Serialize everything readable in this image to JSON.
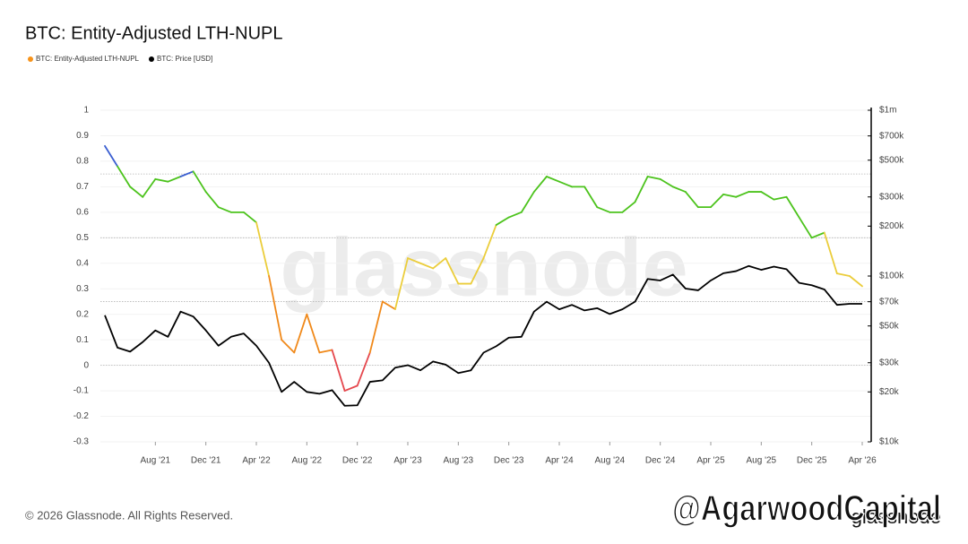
{
  "chart_data": {
    "type": "line",
    "title": "BTC: Entity-Adjusted LTH-NUPL",
    "x": [
      "2021-04",
      "2021-05",
      "2021-06",
      "2021-07",
      "2021-08",
      "2021-09",
      "2021-10",
      "2021-11",
      "2021-12",
      "2022-01",
      "2022-02",
      "2022-03",
      "2022-04",
      "2022-05",
      "2022-06",
      "2022-07",
      "2022-08",
      "2022-09",
      "2022-10",
      "2022-11",
      "2022-12",
      "2023-01",
      "2023-02",
      "2023-03",
      "2023-04",
      "2023-05",
      "2023-06",
      "2023-07",
      "2023-08",
      "2023-09",
      "2023-10",
      "2023-11",
      "2023-12",
      "2024-01",
      "2024-02",
      "2024-03",
      "2024-04",
      "2024-05",
      "2024-06",
      "2024-07",
      "2024-08",
      "2024-09",
      "2024-10",
      "2024-11",
      "2024-12",
      "2025-01",
      "2025-02",
      "2025-03",
      "2025-04",
      "2025-05",
      "2025-06",
      "2025-07",
      "2025-08",
      "2025-09",
      "2025-10",
      "2025-11",
      "2025-12",
      "2026-01",
      "2026-02",
      "2026-03",
      "2026-04"
    ],
    "series": [
      {
        "name": "BTC: Entity-Adjusted LTH-NUPL",
        "color": "#f7931a",
        "values": [
          0.86,
          0.78,
          0.7,
          0.66,
          0.73,
          0.72,
          0.74,
          0.76,
          0.68,
          0.62,
          0.6,
          0.6,
          0.56,
          0.35,
          0.1,
          0.05,
          0.2,
          0.05,
          0.06,
          -0.1,
          -0.08,
          0.05,
          0.25,
          0.22,
          0.42,
          0.4,
          0.38,
          0.42,
          0.32,
          0.32,
          0.42,
          0.55,
          0.58,
          0.6,
          0.68,
          0.74,
          0.72,
          0.7,
          0.7,
          0.62,
          0.6,
          0.6,
          0.64,
          0.74,
          0.73,
          0.7,
          0.68,
          0.62,
          0.62,
          0.67,
          0.66,
          0.68,
          0.68,
          0.65,
          0.66,
          0.58,
          0.5,
          0.52,
          0.36,
          0.35,
          0.31
        ]
      },
      {
        "name": "BTC: Price [USD]",
        "color": "#000000",
        "axis": "y2",
        "values": [
          58000,
          37000,
          35000,
          40000,
          47000,
          43000,
          61000,
          57000,
          47000,
          38000,
          43000,
          45000,
          38000,
          30000,
          20000,
          23000,
          20000,
          19500,
          20500,
          16500,
          16600,
          23000,
          23500,
          28000,
          29000,
          27000,
          30500,
          29200,
          26000,
          27000,
          34500,
          37700,
          42500,
          43000,
          61000,
          70000,
          63000,
          67000,
          62000,
          64000,
          59000,
          63000,
          70000,
          96000,
          94000,
          102000,
          84000,
          82000,
          94000,
          104000,
          107000,
          115000,
          109000,
          114000,
          110000,
          91000,
          88000,
          83000,
          67000,
          68000,
          68000
        ]
      }
    ],
    "color_zones": [
      {
        "from": 0.75,
        "color": "#3b5fd1"
      },
      {
        "from": 0.5,
        "color": "#4cc31c"
      },
      {
        "from": 0.25,
        "color": "#ebcd3b"
      },
      {
        "from": 0,
        "color": "#f0891a"
      },
      {
        "from": -0.3,
        "color": "#e5474d"
      }
    ],
    "ylim": [
      -0.3,
      1
    ],
    "yticks": [
      1,
      0.9,
      0.8,
      0.7,
      0.6,
      0.5,
      0.4,
      0.3,
      0.2,
      0.1,
      0,
      -0.1,
      -0.2,
      -0.3
    ],
    "y2lim": [
      10000,
      1000000
    ],
    "y2log": true,
    "y2ticks": [
      {
        "value": 1000000,
        "label": "$1m"
      },
      {
        "value": 700000,
        "label": "$700k"
      },
      {
        "value": 500000,
        "label": "$500k"
      },
      {
        "value": 300000,
        "label": "$300k"
      },
      {
        "value": 200000,
        "label": "$200k"
      },
      {
        "value": 100000,
        "label": "$100k"
      },
      {
        "value": 70000,
        "label": "$70k"
      },
      {
        "value": 50000,
        "label": "$50k"
      },
      {
        "value": 30000,
        "label": "$30k"
      },
      {
        "value": 20000,
        "label": "$20k"
      },
      {
        "value": 10000,
        "label": "$10k"
      }
    ],
    "xticks": [
      {
        "value": "2021-08",
        "label": "Aug '21"
      },
      {
        "value": "2021-12",
        "label": "Dec '21"
      },
      {
        "value": "2022-04",
        "label": "Apr '22"
      },
      {
        "value": "2022-08",
        "label": "Aug '22"
      },
      {
        "value": "2022-12",
        "label": "Dec '22"
      },
      {
        "value": "2023-04",
        "label": "Apr '23"
      },
      {
        "value": "2023-08",
        "label": "Aug '23"
      },
      {
        "value": "2023-12",
        "label": "Dec '23"
      },
      {
        "value": "2024-04",
        "label": "Apr '24"
      },
      {
        "value": "2024-08",
        "label": "Aug '24"
      },
      {
        "value": "2024-12",
        "label": "Dec '24"
      },
      {
        "value": "2025-04",
        "label": "Apr '25"
      },
      {
        "value": "2025-08",
        "label": "Aug '25"
      },
      {
        "value": "2025-12",
        "label": "Dec '25"
      },
      {
        "value": "2026-04",
        "label": "Apr '26"
      }
    ],
    "grid": true,
    "watermark": "glassnode",
    "copyright": "© 2026 Glassnode. All Rights Reserved.",
    "overlay_text": "@AgarwoodCapital",
    "brand": "glassnode"
  }
}
